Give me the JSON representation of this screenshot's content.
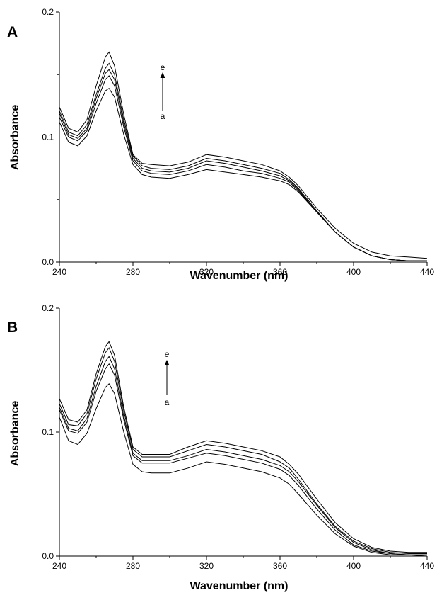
{
  "chart_data": [
    {
      "panel": "A",
      "type": "line",
      "xlabel": "Wavenumber (nm)",
      "ylabel": "Absorbance",
      "xlim": [
        240,
        440
      ],
      "ylim": [
        0.0,
        0.2
      ],
      "x_ticks": [
        "240",
        "280",
        "320",
        "360",
        "400",
        "440"
      ],
      "y_ticks": [
        "0.0",
        "0.1",
        "0.2"
      ],
      "grid": false,
      "annotation": {
        "from": "a",
        "to": "e",
        "direction": "up"
      },
      "x": [
        240,
        245,
        250,
        255,
        260,
        265,
        267,
        270,
        275,
        280,
        285,
        290,
        300,
        310,
        320,
        330,
        340,
        350,
        360,
        365,
        370,
        380,
        390,
        400,
        410,
        420,
        430,
        440
      ],
      "series": [
        {
          "values": [
            0.112,
            0.096,
            0.093,
            0.101,
            0.121,
            0.137,
            0.139,
            0.132,
            0.102,
            0.078,
            0.07,
            0.068,
            0.067,
            0.07,
            0.074,
            0.072,
            0.07,
            0.068,
            0.065,
            0.062,
            0.056,
            0.04,
            0.024,
            0.012,
            0.005,
            0.002,
            0.001,
            0.001
          ]
        },
        {
          "values": [
            0.116,
            0.1,
            0.097,
            0.105,
            0.127,
            0.146,
            0.149,
            0.141,
            0.108,
            0.081,
            0.073,
            0.071,
            0.07,
            0.073,
            0.078,
            0.076,
            0.073,
            0.071,
            0.067,
            0.064,
            0.057,
            0.04,
            0.024,
            0.012,
            0.005,
            0.002,
            0.001,
            0.001
          ]
        },
        {
          "values": [
            0.119,
            0.102,
            0.099,
            0.107,
            0.131,
            0.151,
            0.154,
            0.146,
            0.111,
            0.083,
            0.075,
            0.073,
            0.072,
            0.075,
            0.081,
            0.079,
            0.076,
            0.073,
            0.069,
            0.065,
            0.058,
            0.04,
            0.024,
            0.012,
            0.005,
            0.002,
            0.001,
            0.001
          ]
        },
        {
          "values": [
            0.121,
            0.104,
            0.101,
            0.11,
            0.134,
            0.155,
            0.159,
            0.15,
            0.114,
            0.085,
            0.077,
            0.075,
            0.074,
            0.077,
            0.083,
            0.081,
            0.078,
            0.075,
            0.071,
            0.066,
            0.059,
            0.041,
            0.024,
            0.012,
            0.005,
            0.002,
            0.001,
            0.001
          ]
        },
        {
          "values": [
            0.124,
            0.107,
            0.104,
            0.114,
            0.141,
            0.164,
            0.168,
            0.157,
            0.118,
            0.086,
            0.079,
            0.078,
            0.077,
            0.08,
            0.086,
            0.084,
            0.081,
            0.078,
            0.073,
            0.068,
            0.061,
            0.043,
            0.027,
            0.015,
            0.008,
            0.005,
            0.004,
            0.003
          ]
        }
      ]
    },
    {
      "panel": "B",
      "type": "line",
      "xlabel": "Wavenumber (nm)",
      "ylabel": "Absorbance",
      "xlim": [
        240,
        440
      ],
      "ylim": [
        0.0,
        0.2
      ],
      "x_ticks": [
        "240",
        "280",
        "320",
        "360",
        "400",
        "440"
      ],
      "y_ticks": [
        "0.0",
        "0.1",
        "0.2"
      ],
      "grid": false,
      "annotation": {
        "from": "a",
        "to": "e",
        "direction": "up"
      },
      "x": [
        240,
        245,
        250,
        255,
        260,
        265,
        267,
        270,
        275,
        280,
        285,
        290,
        300,
        310,
        320,
        330,
        340,
        350,
        360,
        365,
        370,
        380,
        390,
        400,
        410,
        420,
        430,
        440
      ],
      "series": [
        {
          "values": [
            0.112,
            0.093,
            0.09,
            0.099,
            0.119,
            0.136,
            0.139,
            0.131,
            0.1,
            0.074,
            0.068,
            0.067,
            0.067,
            0.071,
            0.076,
            0.074,
            0.071,
            0.068,
            0.063,
            0.058,
            0.05,
            0.033,
            0.018,
            0.008,
            0.003,
            0.001,
            0.001,
            0.0
          ]
        },
        {
          "values": [
            0.118,
            0.101,
            0.099,
            0.108,
            0.133,
            0.151,
            0.155,
            0.146,
            0.11,
            0.081,
            0.075,
            0.075,
            0.075,
            0.079,
            0.083,
            0.081,
            0.078,
            0.075,
            0.07,
            0.065,
            0.057,
            0.038,
            0.021,
            0.009,
            0.004,
            0.002,
            0.001,
            0.001
          ]
        },
        {
          "values": [
            0.12,
            0.103,
            0.101,
            0.111,
            0.137,
            0.157,
            0.161,
            0.151,
            0.113,
            0.083,
            0.077,
            0.077,
            0.077,
            0.081,
            0.086,
            0.084,
            0.081,
            0.078,
            0.073,
            0.068,
            0.06,
            0.041,
            0.023,
            0.011,
            0.005,
            0.002,
            0.001,
            0.001
          ]
        },
        {
          "values": [
            0.123,
            0.106,
            0.105,
            0.115,
            0.143,
            0.164,
            0.168,
            0.157,
            0.117,
            0.086,
            0.08,
            0.08,
            0.08,
            0.085,
            0.09,
            0.088,
            0.085,
            0.082,
            0.076,
            0.071,
            0.062,
            0.042,
            0.024,
            0.012,
            0.006,
            0.003,
            0.002,
            0.002
          ]
        },
        {
          "values": [
            0.127,
            0.11,
            0.108,
            0.118,
            0.147,
            0.169,
            0.173,
            0.162,
            0.12,
            0.088,
            0.082,
            0.082,
            0.082,
            0.088,
            0.093,
            0.091,
            0.088,
            0.085,
            0.08,
            0.074,
            0.066,
            0.046,
            0.027,
            0.014,
            0.007,
            0.004,
            0.003,
            0.003
          ]
        }
      ]
    }
  ]
}
